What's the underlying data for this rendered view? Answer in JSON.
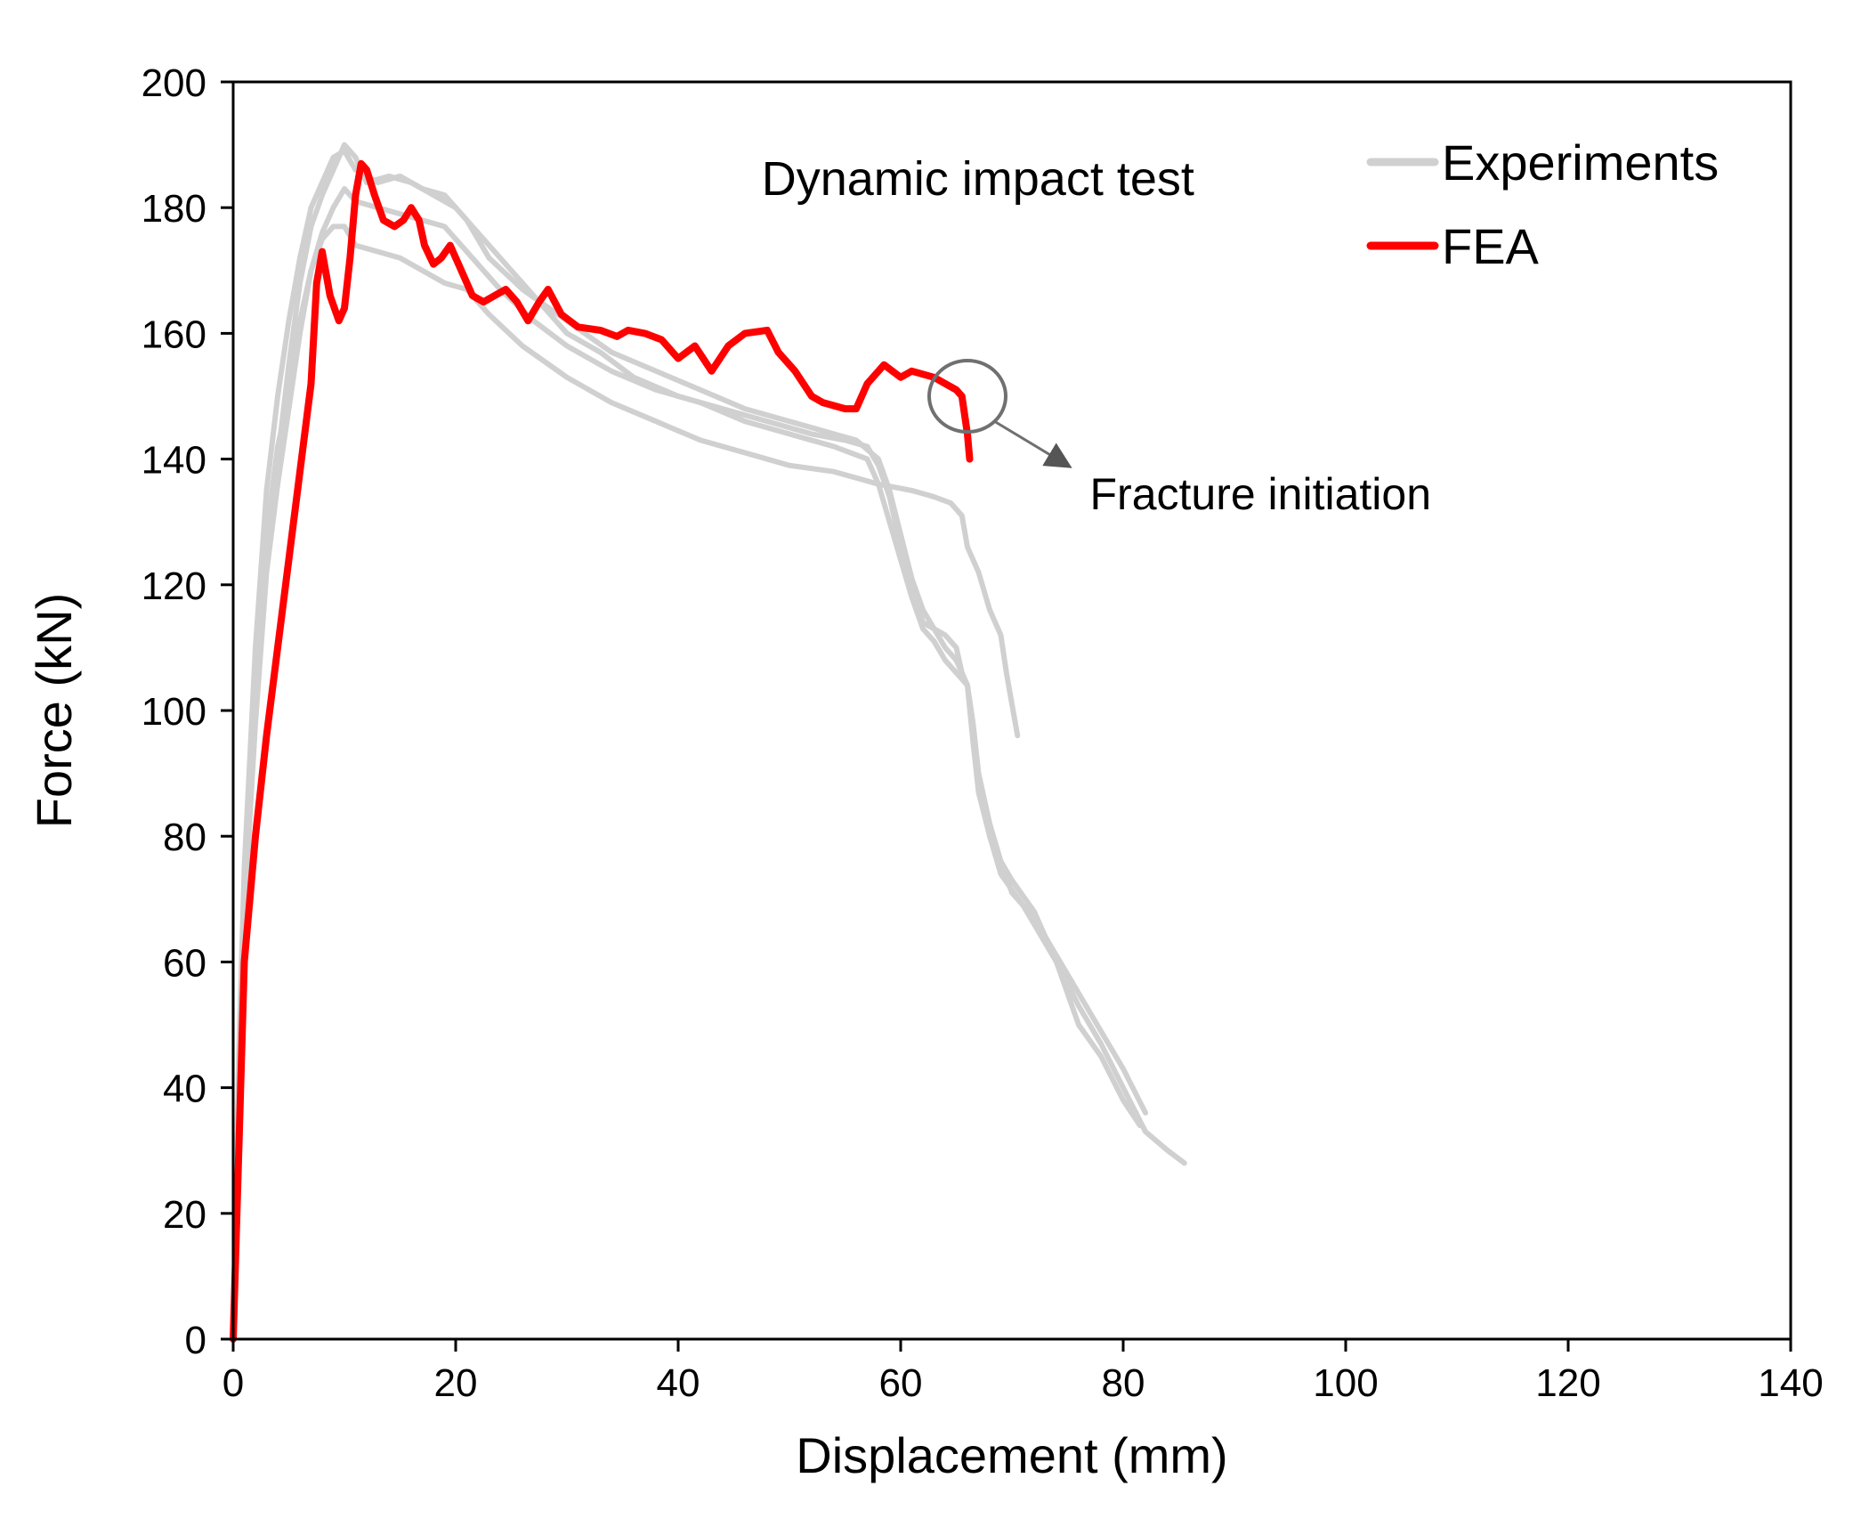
{
  "chart_data": {
    "type": "line",
    "title": "Dynamic impact test",
    "xlabel": "Displacement (mm)",
    "ylabel": "Force (kN)",
    "xlim": [
      0,
      140
    ],
    "ylim": [
      0,
      200
    ],
    "xticks": [
      0,
      20,
      40,
      60,
      80,
      100,
      120,
      140
    ],
    "yticks": [
      0,
      20,
      40,
      60,
      80,
      100,
      120,
      140,
      160,
      180,
      200
    ],
    "grid": false,
    "legend_position": "top-right",
    "legend": [
      {
        "label": "Experiments",
        "color": "#d0d0d0"
      },
      {
        "label": "FEA",
        "color": "#ff0000"
      }
    ],
    "annotation": {
      "text": "Fracture initiation",
      "circle_center": [
        66,
        150
      ],
      "arrow_to": [
        75,
        139
      ]
    },
    "series": [
      {
        "group": "Experiments",
        "color": "#d0d0d0",
        "points": [
          [
            0,
            0
          ],
          [
            0.5,
            40
          ],
          [
            1,
            70
          ],
          [
            2,
            100
          ],
          [
            3,
            125
          ],
          [
            4,
            140
          ],
          [
            5,
            155
          ],
          [
            6,
            168
          ],
          [
            7,
            177
          ],
          [
            8,
            182
          ],
          [
            9,
            186
          ],
          [
            10,
            190
          ],
          [
            11,
            188
          ],
          [
            12,
            184
          ],
          [
            14,
            185
          ],
          [
            16,
            184
          ],
          [
            18,
            182
          ],
          [
            20,
            180
          ],
          [
            22,
            176
          ],
          [
            24,
            172
          ],
          [
            26,
            168
          ],
          [
            28,
            164
          ],
          [
            30,
            160
          ],
          [
            33,
            157
          ],
          [
            36,
            153
          ],
          [
            40,
            150
          ],
          [
            44,
            148
          ],
          [
            48,
            146
          ],
          [
            52,
            144
          ],
          [
            55,
            143
          ],
          [
            57,
            142
          ],
          [
            58,
            139
          ],
          [
            59,
            134
          ],
          [
            60,
            126
          ],
          [
            61,
            120
          ],
          [
            62,
            114
          ],
          [
            64,
            112
          ],
          [
            65,
            110
          ],
          [
            65.5,
            106
          ],
          [
            66,
            104
          ],
          [
            66.5,
            96
          ],
          [
            67,
            88
          ],
          [
            68,
            80
          ],
          [
            69,
            76
          ],
          [
            70,
            73
          ],
          [
            72,
            68
          ],
          [
            74,
            60
          ],
          [
            75,
            55
          ],
          [
            76,
            50
          ],
          [
            78,
            45
          ],
          [
            80,
            38
          ],
          [
            81.5,
            34
          ]
        ]
      },
      {
        "group": "Experiments",
        "color": "#d0d0d0",
        "points": [
          [
            0,
            0
          ],
          [
            0.5,
            45
          ],
          [
            1,
            75
          ],
          [
            2,
            110
          ],
          [
            3,
            135
          ],
          [
            4,
            150
          ],
          [
            5,
            162
          ],
          [
            6,
            172
          ],
          [
            7,
            180
          ],
          [
            8,
            184
          ],
          [
            9,
            188
          ],
          [
            10,
            189
          ],
          [
            11,
            186
          ],
          [
            13,
            184
          ],
          [
            15,
            185
          ],
          [
            17,
            183
          ],
          [
            19,
            182
          ],
          [
            21,
            178
          ],
          [
            23,
            172
          ],
          [
            26,
            167
          ],
          [
            30,
            162
          ],
          [
            34,
            157
          ],
          [
            38,
            154
          ],
          [
            42,
            151
          ],
          [
            46,
            148
          ],
          [
            50,
            146
          ],
          [
            54,
            144
          ],
          [
            56,
            143
          ],
          [
            58,
            140
          ],
          [
            59,
            135
          ],
          [
            60,
            128
          ],
          [
            61,
            121
          ],
          [
            62,
            116
          ],
          [
            63,
            113
          ],
          [
            64,
            110
          ],
          [
            65,
            108
          ],
          [
            66,
            104
          ],
          [
            66.5,
            95
          ],
          [
            67,
            87
          ],
          [
            68,
            80
          ],
          [
            69,
            74
          ],
          [
            71,
            69
          ],
          [
            72,
            66
          ],
          [
            74,
            60
          ],
          [
            76,
            53
          ],
          [
            78,
            47
          ],
          [
            80,
            40
          ],
          [
            82,
            33
          ],
          [
            84,
            30
          ],
          [
            85.5,
            28
          ]
        ]
      },
      {
        "group": "Experiments",
        "color": "#d0d0d0",
        "points": [
          [
            0,
            0
          ],
          [
            0.5,
            40
          ],
          [
            1,
            72
          ],
          [
            2,
            105
          ],
          [
            3,
            128
          ],
          [
            4,
            142
          ],
          [
            5,
            150
          ],
          [
            6,
            162
          ],
          [
            7,
            170
          ],
          [
            8,
            175
          ],
          [
            9,
            177
          ],
          [
            10,
            177
          ],
          [
            11,
            174
          ],
          [
            13,
            173
          ],
          [
            15,
            172
          ],
          [
            17,
            170
          ],
          [
            19,
            168
          ],
          [
            21,
            167
          ],
          [
            23,
            163
          ],
          [
            26,
            158
          ],
          [
            30,
            153
          ],
          [
            34,
            149
          ],
          [
            38,
            146
          ],
          [
            42,
            143
          ],
          [
            46,
            141
          ],
          [
            50,
            139
          ],
          [
            54,
            138
          ],
          [
            58,
            136
          ],
          [
            61,
            135
          ],
          [
            63,
            134
          ],
          [
            64.5,
            133
          ],
          [
            65.5,
            131
          ],
          [
            66,
            126
          ],
          [
            67,
            122
          ],
          [
            68,
            116
          ],
          [
            69,
            112
          ],
          [
            69.5,
            106
          ],
          [
            70,
            101
          ],
          [
            70.5,
            96
          ]
        ]
      },
      {
        "group": "Experiments",
        "color": "#d0d0d0",
        "points": [
          [
            0,
            0
          ],
          [
            0.5,
            38
          ],
          [
            1,
            68
          ],
          [
            2,
            98
          ],
          [
            3,
            122
          ],
          [
            4,
            136
          ],
          [
            5,
            148
          ],
          [
            6,
            160
          ],
          [
            7,
            170
          ],
          [
            8,
            176
          ],
          [
            9,
            180
          ],
          [
            10,
            183
          ],
          [
            11,
            181
          ],
          [
            13,
            180
          ],
          [
            15,
            179
          ],
          [
            17,
            178
          ],
          [
            19,
            177
          ],
          [
            21,
            173
          ],
          [
            24,
            167
          ],
          [
            27,
            162
          ],
          [
            30,
            158
          ],
          [
            34,
            154
          ],
          [
            38,
            151
          ],
          [
            42,
            149
          ],
          [
            46,
            146
          ],
          [
            50,
            144
          ],
          [
            54,
            142
          ],
          [
            57,
            140
          ],
          [
            58,
            136
          ],
          [
            59,
            130
          ],
          [
            60,
            124
          ],
          [
            61,
            118
          ],
          [
            62,
            113
          ],
          [
            63,
            111
          ],
          [
            64,
            108
          ],
          [
            65,
            106
          ],
          [
            66,
            104
          ],
          [
            66.5,
            98
          ],
          [
            67,
            90
          ],
          [
            68,
            82
          ],
          [
            69,
            76
          ],
          [
            70,
            71
          ],
          [
            72,
            67
          ],
          [
            74,
            61
          ],
          [
            76,
            55
          ],
          [
            78,
            49
          ],
          [
            80,
            43
          ],
          [
            82,
            36
          ]
        ]
      },
      {
        "group": "FEA",
        "color": "#ff0000",
        "points": [
          [
            0,
            0
          ],
          [
            0.5,
            30
          ],
          [
            1,
            60
          ],
          [
            2,
            80
          ],
          [
            3,
            96
          ],
          [
            4,
            110
          ],
          [
            5,
            124
          ],
          [
            6,
            138
          ],
          [
            7,
            152
          ],
          [
            7.5,
            168
          ],
          [
            8,
            173
          ],
          [
            8.7,
            166
          ],
          [
            9.5,
            162
          ],
          [
            10,
            164
          ],
          [
            10.5,
            172
          ],
          [
            11,
            182
          ],
          [
            11.5,
            187
          ],
          [
            12,
            186
          ],
          [
            12.7,
            182
          ],
          [
            13.5,
            178
          ],
          [
            14.5,
            177
          ],
          [
            15.3,
            178
          ],
          [
            16,
            180
          ],
          [
            16.7,
            178
          ],
          [
            17.2,
            174
          ],
          [
            18,
            171
          ],
          [
            18.7,
            172
          ],
          [
            19.5,
            174
          ],
          [
            20.5,
            170
          ],
          [
            21.5,
            166
          ],
          [
            22.5,
            165
          ],
          [
            23.5,
            166
          ],
          [
            24.5,
            167
          ],
          [
            25.5,
            165
          ],
          [
            26.5,
            162
          ],
          [
            27.5,
            165
          ],
          [
            28.3,
            167
          ],
          [
            29.5,
            163
          ],
          [
            31,
            161
          ],
          [
            33,
            160.5
          ],
          [
            34.5,
            159.5
          ],
          [
            35.5,
            160.5
          ],
          [
            37,
            160
          ],
          [
            38.5,
            159
          ],
          [
            40,
            156
          ],
          [
            41.5,
            158
          ],
          [
            43,
            154
          ],
          [
            44.5,
            158
          ],
          [
            46,
            160
          ],
          [
            48,
            160.5
          ],
          [
            49,
            157
          ],
          [
            50.5,
            154
          ],
          [
            52,
            150
          ],
          [
            53,
            149
          ],
          [
            55,
            148
          ],
          [
            56,
            148
          ],
          [
            57,
            152
          ],
          [
            58.5,
            155
          ],
          [
            60,
            153
          ],
          [
            61,
            154
          ],
          [
            62,
            153.5
          ],
          [
            63,
            153
          ],
          [
            64,
            152
          ],
          [
            65,
            151
          ],
          [
            65.5,
            150
          ],
          [
            66,
            144
          ],
          [
            66.2,
            140
          ]
        ]
      }
    ]
  }
}
